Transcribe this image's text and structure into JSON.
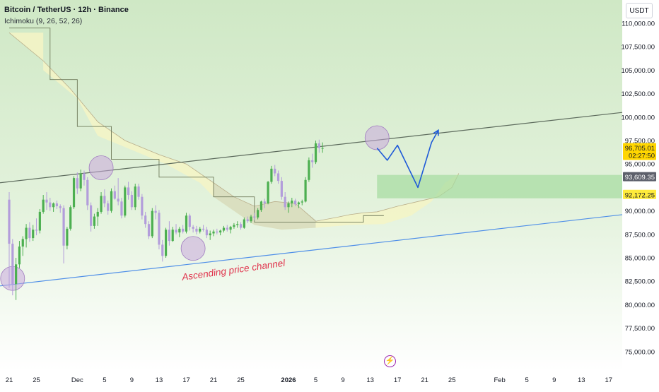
{
  "header": {
    "title": "Bitcoin / TetherUS · 12h · Binance",
    "indicator": "Ichimoku (9, 26, 52, 26)",
    "currency_button": "USDT"
  },
  "colors": {
    "background_top": "#cfe8c5",
    "background_bottom": "#ffffff",
    "candle_up": "#4caf50",
    "candle_down": "#b39ddb",
    "channel_upper": "#5d6b5d",
    "channel_lower": "#4f8fe8",
    "cloud_fill": "#f4f5c6",
    "target_zone": "#a5dca0",
    "projection": "#1e5ad8",
    "annotation_text": "#e0314b",
    "highlight_circle": "#c9a7dd"
  },
  "icons": {
    "event_marker": "lightning-icon"
  },
  "chart_data": {
    "type": "candlestick",
    "title": "Bitcoin / TetherUS · 12h · Binance",
    "indicator": "Ichimoku (9, 26, 52, 26)",
    "y_axis": {
      "min": 73000,
      "max": 112000,
      "ticks": [
        "110,000.00",
        "107,500.00",
        "105,000.00",
        "102,500.00",
        "100,000.00",
        "97,500.00",
        "95,000.00",
        "90,000.00",
        "87,500.00",
        "85,000.00",
        "82,500.00",
        "80,000.00",
        "77,500.00",
        "75,000.00"
      ]
    },
    "x_axis": {
      "ticks": [
        {
          "label": "21",
          "bar": 0
        },
        {
          "label": "25",
          "bar": 8
        },
        {
          "label": "Dec",
          "bar": 20
        },
        {
          "label": "5",
          "bar": 28
        },
        {
          "label": "9",
          "bar": 36
        },
        {
          "label": "13",
          "bar": 44
        },
        {
          "label": "17",
          "bar": 52
        },
        {
          "label": "21",
          "bar": 60
        },
        {
          "label": "25",
          "bar": 68
        },
        {
          "label": "2026",
          "bar": 82,
          "bold": true
        },
        {
          "label": "5",
          "bar": 90
        },
        {
          "label": "9",
          "bar": 98
        },
        {
          "label": "13",
          "bar": 106
        },
        {
          "label": "17",
          "bar": 114
        },
        {
          "label": "21",
          "bar": 122
        },
        {
          "label": "25",
          "bar": 130
        },
        {
          "label": "Feb",
          "bar": 144
        },
        {
          "label": "5",
          "bar": 152
        },
        {
          "label": "9",
          "bar": 160
        },
        {
          "label": "13",
          "bar": 168
        },
        {
          "label": "17",
          "bar": 176
        }
      ]
    },
    "price_labels": [
      {
        "text": "96,705.01",
        "value": 96705.01,
        "sub": "02:27:50",
        "style": "current"
      },
      {
        "text": "93,609.35",
        "value": 93609.35,
        "style": "dark"
      },
      {
        "text": "92,172.25",
        "value": 92172.25,
        "style": "yellow"
      }
    ],
    "candles": [
      [
        91200,
        92000,
        81800,
        86500
      ],
      [
        86500,
        87000,
        81000,
        82200
      ],
      [
        82200,
        85000,
        80500,
        84300
      ],
      [
        84300,
        86800,
        83900,
        86200
      ],
      [
        86200,
        87300,
        85200,
        87000
      ],
      [
        87000,
        88600,
        86100,
        88200
      ],
      [
        88200,
        88800,
        86700,
        87100
      ],
      [
        87100,
        88500,
        86800,
        88000
      ],
      [
        88000,
        89200,
        87400,
        87900
      ],
      [
        87900,
        90200,
        87600,
        89900
      ],
      [
        89900,
        91700,
        89700,
        91200
      ],
      [
        91200,
        92000,
        90100,
        90900
      ],
      [
        90900,
        91400,
        90000,
        90400
      ],
      [
        90400,
        90900,
        89900,
        90800
      ],
      [
        90800,
        91100,
        90200,
        90500
      ],
      [
        90500,
        90700,
        89800,
        90300
      ],
      [
        90300,
        90600,
        84400,
        86300
      ],
      [
        86300,
        88300,
        85900,
        88100
      ],
      [
        88100,
        90600,
        87900,
        90400
      ],
      [
        90400,
        93700,
        90200,
        93500
      ],
      [
        93500,
        94100,
        91800,
        92400
      ],
      [
        92400,
        94400,
        92100,
        94000
      ],
      [
        94000,
        94300,
        92700,
        93300
      ],
      [
        93300,
        93600,
        90100,
        90600
      ],
      [
        90600,
        90900,
        87800,
        88400
      ],
      [
        88400,
        89700,
        88100,
        89400
      ],
      [
        89400,
        90300,
        88400,
        89900
      ],
      [
        89900,
        92000,
        89700,
        91600
      ],
      [
        91600,
        92300,
        90400,
        90800
      ],
      [
        90800,
        91100,
        89600,
        90000
      ],
      [
        90000,
        92400,
        89800,
        92100
      ],
      [
        92100,
        92700,
        91200,
        91300
      ],
      [
        91300,
        93500,
        90600,
        91000
      ],
      [
        91000,
        91400,
        89200,
        89500
      ],
      [
        89500,
        92700,
        89300,
        92500
      ],
      [
        92500,
        93100,
        91200,
        91700
      ],
      [
        91700,
        92100,
        90100,
        90400
      ],
      [
        90400,
        92900,
        90100,
        92600
      ],
      [
        92600,
        92900,
        91200,
        91500
      ],
      [
        91500,
        91800,
        89100,
        89500
      ],
      [
        89500,
        89900,
        88200,
        88600
      ],
      [
        88600,
        88900,
        87000,
        87300
      ],
      [
        87300,
        90300,
        87100,
        90000
      ],
      [
        90000,
        90600,
        89100,
        89800
      ],
      [
        89800,
        90100,
        85900,
        86400
      ],
      [
        86400,
        86900,
        84600,
        85200
      ],
      [
        85200,
        88200,
        85000,
        88000
      ],
      [
        88000,
        88900,
        86300,
        86800
      ],
      [
        86800,
        88300,
        86700,
        88000
      ],
      [
        88000,
        88600,
        87500,
        87700
      ],
      [
        87700,
        88300,
        87200,
        88100
      ],
      [
        88100,
        88500,
        87600,
        87800
      ],
      [
        87800,
        89800,
        87600,
        89500
      ],
      [
        89500,
        89700,
        87900,
        88300
      ],
      [
        88300,
        88500,
        87700,
        88100
      ],
      [
        88100,
        88400,
        87500,
        87800
      ],
      [
        87800,
        88300,
        87600,
        88100
      ],
      [
        88100,
        88500,
        87800,
        88000
      ],
      [
        88000,
        88300,
        87100,
        87400
      ],
      [
        87400,
        87900,
        86900,
        87600
      ],
      [
        87600,
        88000,
        87300,
        87800
      ],
      [
        87800,
        88100,
        87500,
        87700
      ],
      [
        87700,
        88000,
        87400,
        87900
      ],
      [
        87900,
        88400,
        87700,
        88200
      ],
      [
        88200,
        88500,
        87800,
        88000
      ],
      [
        88000,
        88400,
        87600,
        88300
      ],
      [
        88300,
        88700,
        88100,
        88500
      ],
      [
        88500,
        88900,
        88200,
        88600
      ],
      [
        88600,
        88800,
        88000,
        88200
      ],
      [
        88200,
        89300,
        88100,
        89100
      ],
      [
        89100,
        89400,
        88700,
        88900
      ],
      [
        88900,
        89600,
        88700,
        89400
      ],
      [
        89400,
        89800,
        89000,
        89300
      ],
      [
        89300,
        90300,
        89100,
        90100
      ],
      [
        90100,
        91100,
        89900,
        91000
      ],
      [
        91000,
        91300,
        90300,
        90800
      ],
      [
        90800,
        93200,
        90700,
        93100
      ],
      [
        93100,
        94800,
        92900,
        94500
      ],
      [
        94500,
        94900,
        93700,
        94000
      ],
      [
        94000,
        94300,
        92900,
        93200
      ],
      [
        93200,
        93600,
        91200,
        91500
      ],
      [
        91500,
        92000,
        90100,
        90400
      ],
      [
        90400,
        91000,
        89800,
        90800
      ],
      [
        90800,
        91400,
        90400,
        91100
      ],
      [
        91100,
        91300,
        90500,
        90700
      ],
      [
        90700,
        91000,
        90300,
        90900
      ],
      [
        90900,
        91200,
        90600,
        91000
      ],
      [
        91000,
        93600,
        90900,
        93300
      ],
      [
        93300,
        95700,
        93100,
        95400
      ],
      [
        95400,
        96100,
        94600,
        95200
      ],
      [
        95200,
        97500,
        95000,
        97200
      ],
      [
        97200,
        97600,
        96200,
        96700
      ],
      [
        96700,
        97300,
        96200,
        96705
      ]
    ],
    "ichimoku": {
      "base_line": [
        [
          0,
          109500
        ],
        [
          12,
          109500
        ],
        [
          12,
          104000
        ],
        [
          20,
          104000
        ],
        [
          20,
          99000
        ],
        [
          30,
          99000
        ],
        [
          30,
          95500
        ],
        [
          44,
          95500
        ],
        [
          44,
          93600
        ],
        [
          60,
          93600
        ],
        [
          60,
          91500
        ],
        [
          72,
          91500
        ],
        [
          72,
          88800
        ],
        [
          104,
          88800
        ],
        [
          104,
          89500
        ],
        [
          110,
          89500
        ]
      ],
      "cloud_bottom": [
        [
          0,
          109000
        ],
        [
          10,
          109000
        ],
        [
          10,
          105000
        ],
        [
          20,
          102000
        ],
        [
          26,
          98000
        ],
        [
          36,
          96500
        ],
        [
          46,
          95000
        ],
        [
          56,
          93000
        ],
        [
          60,
          91500
        ],
        [
          66,
          90000
        ],
        [
          72,
          88500
        ],
        [
          80,
          88000
        ],
        [
          90,
          88200
        ],
        [
          100,
          88500
        ],
        [
          110,
          88600
        ],
        [
          118,
          89500
        ],
        [
          124,
          91000
        ],
        [
          128,
          93000
        ],
        [
          132,
          94000
        ]
      ],
      "cloud_top": [
        [
          0,
          109000
        ],
        [
          10,
          106000
        ],
        [
          18,
          103000
        ],
        [
          26,
          99500
        ],
        [
          34,
          97500
        ],
        [
          44,
          96000
        ],
        [
          52,
          95000
        ],
        [
          60,
          93000
        ],
        [
          66,
          91500
        ],
        [
          72,
          90500
        ],
        [
          78,
          91000
        ],
        [
          84,
          90800
        ],
        [
          90,
          88900
        ],
        [
          96,
          89300
        ],
        [
          100,
          89600
        ],
        [
          104,
          89800
        ],
        [
          108,
          89900
        ],
        [
          114,
          90500
        ],
        [
          120,
          91000
        ],
        [
          126,
          91500
        ],
        [
          130,
          92500
        ],
        [
          132,
          94000
        ]
      ],
      "dark_cloud_from_bar": 60
    },
    "channel": {
      "upper": {
        "x1": 0,
        "y1": 93000,
        "x2": 176,
        "y2": 100500
      },
      "lower": {
        "x1": 0,
        "y1": 82000,
        "x2": 176,
        "y2": 89600
      }
    },
    "target_zone": {
      "x1": 108,
      "x2": 176,
      "y_low": 92172.25,
      "y_high": 93609.35
    },
    "projection_path": [
      [
        108,
        96700
      ],
      [
        111,
        95400
      ],
      [
        114,
        97000
      ],
      [
        120,
        92500
      ],
      [
        124,
        97300
      ],
      [
        126,
        98600
      ]
    ],
    "highlight_circles": [
      [
        1,
        82800
      ],
      [
        27,
        94600
      ],
      [
        54,
        86000
      ],
      [
        108,
        97800
      ]
    ],
    "annotations": [
      "Ascending price channel"
    ]
  }
}
